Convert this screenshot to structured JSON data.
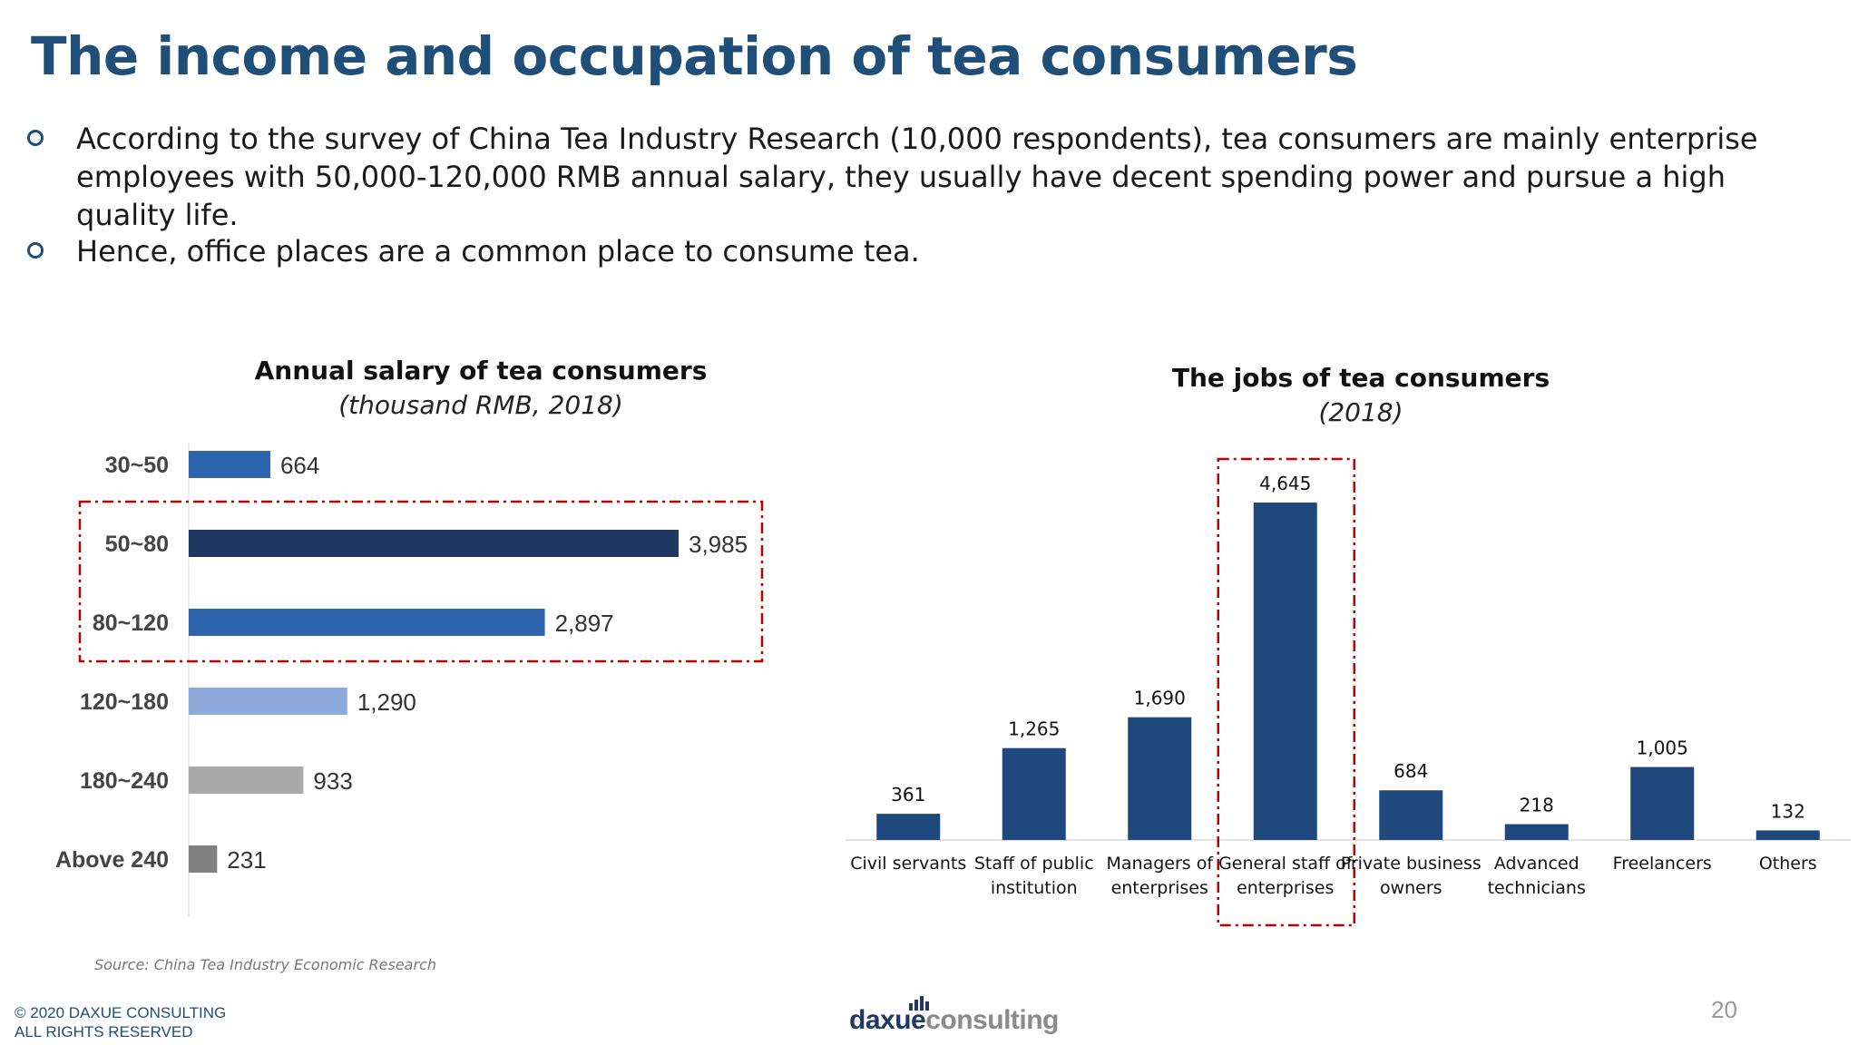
{
  "title": "The income and occupation of tea consumers",
  "bullets": [
    "According to the survey of China Tea Industry Research (10,000 respondents), tea consumers are mainly enterprise employees with 50,000-120,000 RMB annual salary, they usually have decent spending power and pursue a high quality life.",
    "Hence, office places are a common place to consume tea."
  ],
  "chart_data": [
    {
      "type": "bar",
      "orientation": "horizontal",
      "title": "Annual salary of tea consumers",
      "subtitle": "(thousand RMB, 2018)",
      "categories": [
        "30~50",
        "50~80",
        "80~120",
        "120~180",
        "180~240",
        "Above 240"
      ],
      "values": [
        664,
        3985,
        2897,
        1290,
        933,
        231
      ],
      "value_labels": [
        "664",
        "3,985",
        "2,897",
        "1,290",
        "933",
        "231"
      ],
      "colors": [
        "#2e64ae",
        "#1f3864",
        "#2e64ae",
        "#8eaadb",
        "#a9a9a9",
        "#808080"
      ],
      "highlight": [
        "50~80",
        "80~120"
      ],
      "highlight_color": "#c00000",
      "grid": false,
      "legend": "none"
    },
    {
      "type": "bar",
      "orientation": "vertical",
      "title": "The jobs of tea consumers",
      "subtitle": "(2018)",
      "categories": [
        [
          "Civil servants"
        ],
        [
          "Staff of public",
          "institution"
        ],
        [
          "Managers of",
          "enterprises"
        ],
        [
          "General staff of",
          "enterprises"
        ],
        [
          "Private business",
          "owners"
        ],
        [
          "Advanced",
          "technicians"
        ],
        [
          "Freelancers"
        ],
        [
          "Others"
        ]
      ],
      "values": [
        361,
        1265,
        1690,
        4645,
        684,
        218,
        1005,
        132
      ],
      "value_labels": [
        "361",
        "1,265",
        "1,690",
        "4,645",
        "684",
        "218",
        "1,005",
        "132"
      ],
      "color": "#1f497d",
      "highlight": [
        "General staff of enterprises"
      ],
      "highlight_color": "#c00000",
      "grid": false,
      "legend": "none"
    }
  ],
  "source": "Source: China Tea Industry Economic Research",
  "copyright": [
    "© 2020 DAXUE CONSULTING",
    "ALL RIGHTS RESERVED"
  ],
  "logo": {
    "part1": "daxue",
    "part2": "consulting"
  },
  "page_number": "20"
}
